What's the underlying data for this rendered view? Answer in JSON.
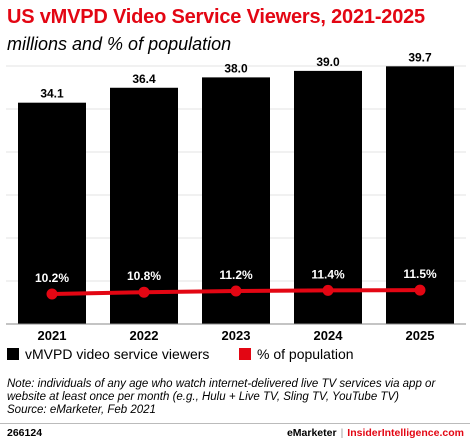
{
  "header": {
    "title": "US vMVPD Video Service Viewers, 2021-2025",
    "subtitle": "millions and % of population"
  },
  "chart_data": {
    "type": "bar",
    "categories": [
      "2021",
      "2022",
      "2023",
      "2024",
      "2025"
    ],
    "series": [
      {
        "name": "vMVPD video service viewers",
        "kind": "bar",
        "color": "#000000",
        "values": [
          34.1,
          36.4,
          38.0,
          39.0,
          39.7
        ],
        "labels": [
          "34.1",
          "36.4",
          "38.0",
          "39.0",
          "39.7"
        ]
      },
      {
        "name": "% of population",
        "kind": "line",
        "color": "#e30613",
        "values": [
          10.2,
          10.8,
          11.2,
          11.4,
          11.5
        ],
        "labels": [
          "10.2%",
          "10.8%",
          "11.2%",
          "11.4%",
          "11.5%"
        ]
      }
    ],
    "grid": true,
    "legend": "bottom-left"
  },
  "note": "Note: individuals of any age who watch internet-delivered live TV services via app or website at least once per month (e.g., Hulu + Live TV, Sling TV, YouTube TV)",
  "source": "Source: eMarketer, Feb 2021",
  "footer": {
    "id": "266124",
    "brand": "eMarketer",
    "separator": "|",
    "brand2": "InsiderIntelligence.com"
  }
}
